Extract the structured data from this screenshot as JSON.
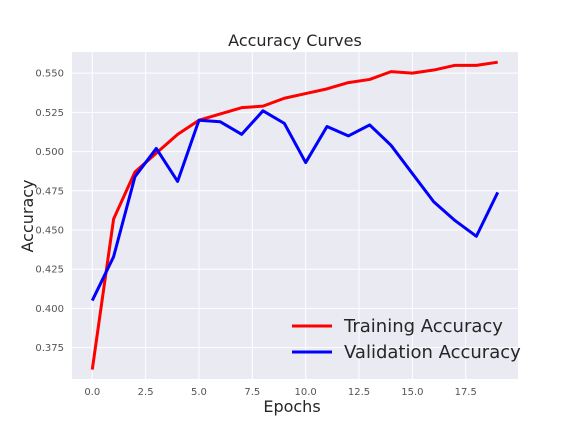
{
  "chart_data": {
    "type": "line",
    "title": "Accuracy Curves",
    "xlabel": "Epochs",
    "ylabel": "Accuracy",
    "xlim": [
      -0.95,
      19.95
    ],
    "ylim": [
      0.355,
      0.5635
    ],
    "xticks": [
      0.0,
      2.5,
      5.0,
      7.5,
      10.0,
      12.5,
      15.0,
      17.5
    ],
    "xtick_labels": [
      "0.0",
      "2.5",
      "5.0",
      "7.5",
      "10.0",
      "12.5",
      "15.0",
      "17.5"
    ],
    "yticks": [
      0.375,
      0.4,
      0.425,
      0.45,
      0.475,
      0.5,
      0.525,
      0.55
    ],
    "ytick_labels": [
      "0.375",
      "0.400",
      "0.425",
      "0.450",
      "0.475",
      "0.500",
      "0.525",
      "0.550"
    ],
    "grid": true,
    "legend_position": "lower-right",
    "x": [
      0,
      1,
      2,
      3,
      4,
      5,
      6,
      7,
      8,
      9,
      10,
      11,
      12,
      13,
      14,
      15,
      16,
      17,
      18,
      19
    ],
    "series": [
      {
        "name": "Training Accuracy",
        "color": "#ff0000",
        "values": [
          0.361,
          0.457,
          0.487,
          0.499,
          0.511,
          0.52,
          0.524,
          0.528,
          0.529,
          0.534,
          0.537,
          0.54,
          0.544,
          0.546,
          0.551,
          0.55,
          0.552,
          0.555,
          0.555,
          0.557
        ]
      },
      {
        "name": "Validation Accuracy",
        "color": "#0000ff",
        "values": [
          0.405,
          0.433,
          0.484,
          0.502,
          0.481,
          0.52,
          0.519,
          0.511,
          0.526,
          0.518,
          0.493,
          0.516,
          0.51,
          0.517,
          0.504,
          0.486,
          0.468,
          0.456,
          0.446,
          0.474
        ]
      }
    ]
  }
}
